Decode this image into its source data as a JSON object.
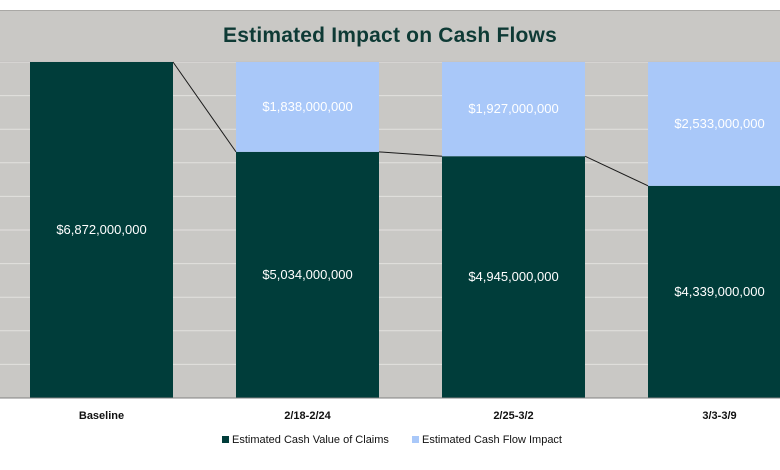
{
  "chart_data": {
    "type": "bar",
    "stacked": true,
    "title": "Estimated Impact on Cash Flows",
    "categories": [
      "Baseline",
      "2/18-2/24",
      "2/25-3/2",
      "3/3-3/9"
    ],
    "series": [
      {
        "name": "Estimated Cash Value of Claims",
        "color": "#003d3a",
        "values": [
          6872000000,
          5034000000,
          4945000000,
          4339000000
        ],
        "labels": [
          "$6,872,000,000",
          "$5,034,000,000",
          "$4,945,000,000",
          "$4,339,000,000"
        ]
      },
      {
        "name": "Estimated Cash Flow Impact",
        "color": "#a9c8f9",
        "values": [
          null,
          1838000000,
          1927000000,
          2533000000
        ],
        "labels": [
          "",
          "$1,838,000,000",
          "$1,927,000,000",
          "$2,533,000,000"
        ]
      }
    ],
    "ylim": [
      0,
      6872000000
    ],
    "grid": true,
    "xlabel": "",
    "ylabel": "",
    "connector_line": true,
    "legend_position": "bottom"
  }
}
